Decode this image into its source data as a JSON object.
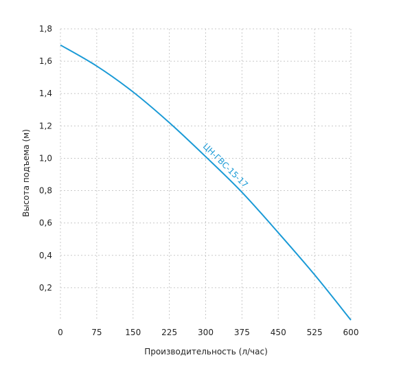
{
  "chart_data": {
    "type": "line",
    "title": "",
    "xlabel": "Производительность (л/час)",
    "ylabel": "Высота подъема (м)",
    "xlim": [
      0,
      600
    ],
    "ylim": [
      0,
      1.8
    ],
    "x_ticks": [
      0,
      75,
      150,
      225,
      300,
      375,
      450,
      525,
      600
    ],
    "x_tick_labels": [
      "0",
      "75",
      "150",
      "225",
      "300",
      "375",
      "450",
      "525",
      "600"
    ],
    "y_ticks": [
      0.2,
      0.4,
      0.6,
      0.8,
      1.0,
      1.2,
      1.4,
      1.6,
      1.8
    ],
    "y_tick_labels": [
      "0,2",
      "0,4",
      "0,6",
      "0,8",
      "1,0",
      "1,2",
      "1,4",
      "1,6",
      "1,8"
    ],
    "grid": true,
    "series": [
      {
        "name": "ЦН-ГВС-15-17",
        "color": "#1a9ad6",
        "x": [
          0,
          75,
          150,
          225,
          300,
          375,
          450,
          525,
          600
        ],
        "y": [
          1.7,
          1.57,
          1.41,
          1.22,
          1.01,
          0.79,
          0.54,
          0.28,
          0.0
        ]
      }
    ]
  }
}
